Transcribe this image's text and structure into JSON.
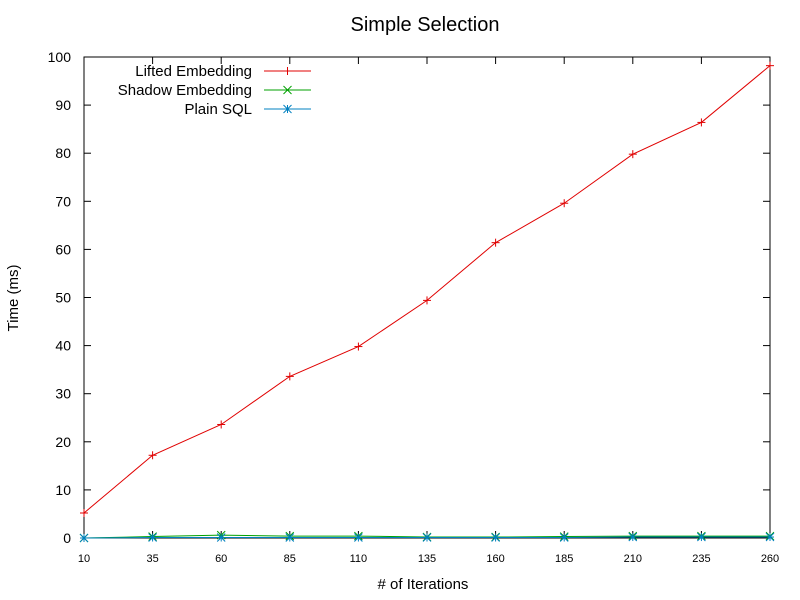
{
  "chart_data": {
    "type": "line",
    "title": "Simple Selection",
    "xlabel": "# of Iterations",
    "ylabel": "Time (ms)",
    "x": [
      10,
      35,
      60,
      85,
      110,
      135,
      160,
      185,
      210,
      235,
      260
    ],
    "xticks": [
      "10",
      "35",
      "60",
      "85",
      "110",
      "135",
      "160",
      "185",
      "210",
      "235",
      "260"
    ],
    "yticks": [
      "0",
      "10",
      "20",
      "30",
      "40",
      "50",
      "60",
      "70",
      "80",
      "90",
      "100"
    ],
    "xlim": [
      10,
      260
    ],
    "ylim": [
      0,
      100
    ],
    "grid": false,
    "legend_position": "top-left",
    "series": [
      {
        "name": "Lifted Embedding",
        "color": "#e00000",
        "marker": "plus",
        "values": [
          5.2,
          17.2,
          23.6,
          33.6,
          39.8,
          49.4,
          61.4,
          69.6,
          79.8,
          86.4,
          98.2
        ]
      },
      {
        "name": "Shadow Embedding",
        "color": "#00a000",
        "marker": "cross",
        "values": [
          0.0,
          0.3,
          0.6,
          0.4,
          0.4,
          0.2,
          0.2,
          0.3,
          0.4,
          0.4,
          0.4
        ]
      },
      {
        "name": "Plain SQL",
        "color": "#0080c0",
        "marker": "star",
        "values": [
          0.0,
          0.1,
          0.1,
          0.1,
          0.1,
          0.1,
          0.1,
          0.1,
          0.2,
          0.2,
          0.2
        ]
      }
    ]
  }
}
